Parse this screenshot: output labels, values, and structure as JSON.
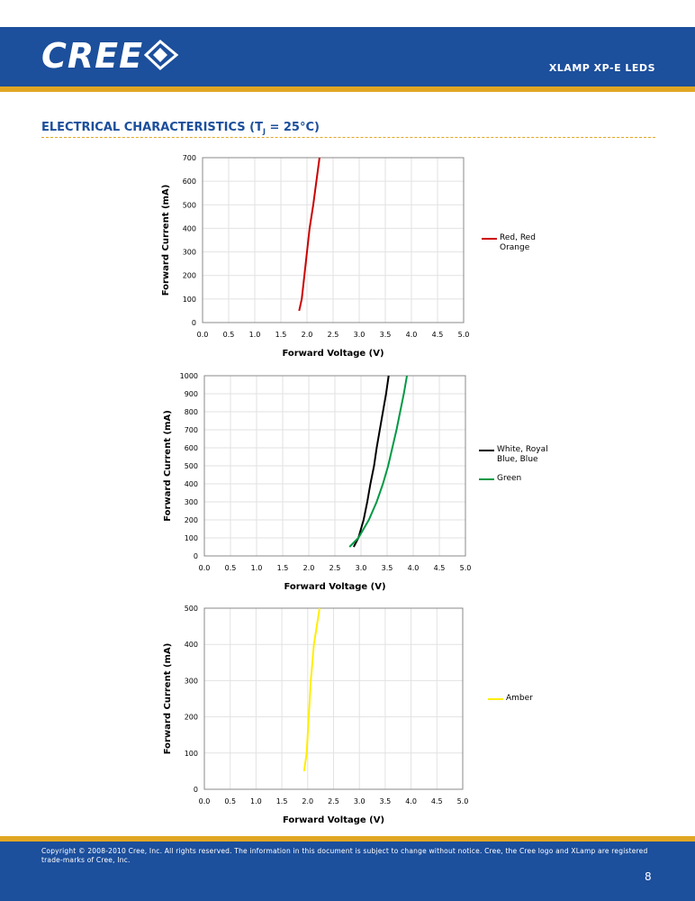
{
  "header": {
    "logo": "CREE",
    "product": "XLAMP XP-E LEDS"
  },
  "section": {
    "title_prefix": "ELECTRICAL CHARACTERISTICS (T",
    "title_subscript": "J",
    "title_suffix": " = 25°C)"
  },
  "chart_data": [
    {
      "type": "line",
      "xlabel": "Forward Voltage (V)",
      "ylabel": "Forward Current (mA)",
      "grid": true,
      "xlim": [
        0,
        5
      ],
      "ylim": [
        0,
        700
      ],
      "xticks": [
        {
          "value": 0,
          "label": "0.0"
        },
        0.5,
        {
          "value": 1,
          "label": "1.0"
        },
        1.5,
        {
          "value": 2,
          "label": "2.0"
        },
        2.5,
        {
          "value": 3,
          "label": "3.0"
        },
        3.5,
        {
          "value": 4,
          "label": "4.0"
        },
        4.5,
        {
          "value": 5,
          "label": "5.0"
        }
      ],
      "yticks": [
        0,
        100,
        200,
        300,
        400,
        500,
        600,
        700
      ],
      "series": [
        {
          "name": "Red, Red Orange",
          "color": "#cc0000",
          "x": [
            1.85,
            1.9,
            1.95,
            2.0,
            2.05,
            2.12,
            2.18,
            2.24
          ],
          "values": [
            50,
            100,
            200,
            300,
            400,
            500,
            600,
            700
          ]
        }
      ]
    },
    {
      "type": "line",
      "xlabel": "Forward Voltage (V)",
      "ylabel": "Forward Current (mA)",
      "grid": true,
      "xlim": [
        0,
        5
      ],
      "ylim": [
        0,
        1000
      ],
      "xticks": [
        {
          "value": 0,
          "label": "0.0"
        },
        0.5,
        {
          "value": 1,
          "label": "1.0"
        },
        1.5,
        {
          "value": 2,
          "label": "2.0"
        },
        2.5,
        {
          "value": 3,
          "label": "3.0"
        },
        3.5,
        {
          "value": 4,
          "label": "4.0"
        },
        4.5,
        {
          "value": 5,
          "label": "5.0"
        }
      ],
      "yticks": [
        0,
        100,
        200,
        300,
        400,
        500,
        600,
        700,
        800,
        900,
        1000
      ],
      "series": [
        {
          "name": "White, Royal Blue, Blue",
          "color": "#000000",
          "x": [
            2.86,
            2.95,
            3.05,
            3.12,
            3.18,
            3.25,
            3.3,
            3.36,
            3.42,
            3.48,
            3.53
          ],
          "values": [
            50,
            100,
            200,
            300,
            400,
            500,
            600,
            700,
            800,
            900,
            1000
          ]
        },
        {
          "name": "Green",
          "color": "#009944",
          "x": [
            2.78,
            2.95,
            3.15,
            3.3,
            3.42,
            3.52,
            3.6,
            3.68,
            3.75,
            3.82,
            3.88
          ],
          "values": [
            50,
            100,
            200,
            300,
            400,
            500,
            600,
            700,
            800,
            900,
            1000
          ]
        }
      ]
    },
    {
      "type": "line",
      "xlabel": "Forward Voltage (V)",
      "ylabel": "Forward Current (mA)",
      "grid": true,
      "xlim": [
        0,
        5
      ],
      "ylim": [
        0,
        500
      ],
      "xticks": [
        {
          "value": 0,
          "label": "0.0"
        },
        0.5,
        {
          "value": 1,
          "label": "1.0"
        },
        1.5,
        {
          "value": 2,
          "label": "2.0"
        },
        2.5,
        {
          "value": 3,
          "label": "3.0"
        },
        3.5,
        {
          "value": 4,
          "label": "4.0"
        },
        4.5,
        {
          "value": 5,
          "label": "5.0"
        }
      ],
      "yticks": [
        0,
        100,
        200,
        300,
        400,
        500
      ],
      "series": [
        {
          "name": "Amber",
          "color": "#ffee00",
          "x": [
            1.93,
            1.98,
            2.02,
            2.06,
            2.12,
            2.23
          ],
          "values": [
            50,
            100,
            200,
            300,
            400,
            500
          ]
        }
      ]
    }
  ],
  "footer": {
    "copyright": "Copyright © 2008-2010 Cree, Inc. All rights reserved. The information in this document is subject to change without notice. Cree, the Cree logo and XLamp are registered trade-marks of Cree, Inc.",
    "page": "8"
  }
}
